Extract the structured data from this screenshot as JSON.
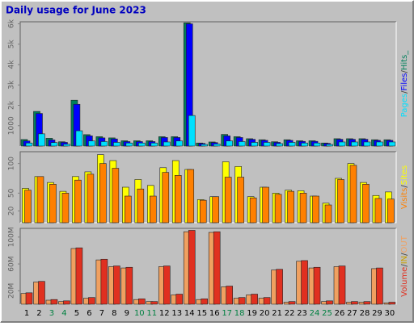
{
  "title": "Daily usage for June 2023",
  "legend_separator": "/",
  "chart_data": [
    {
      "type": "bar",
      "ylim": [
        0,
        6100
      ],
      "yticks": [
        1000,
        {
          "value": 2000,
          "label": "2k"
        },
        {
          "value": 3000,
          "label": "3k"
        },
        {
          "value": 4000,
          "label": "4k"
        },
        {
          "value": 5000,
          "label": "5k"
        },
        {
          "value": 6000,
          "label": "6k"
        }
      ],
      "series": [
        {
          "name": "Hits_",
          "color": "#00805c",
          "values": [
            320,
            1700,
            380,
            210,
            2250,
            560,
            460,
            400,
            260,
            260,
            260,
            460,
            460,
            6050,
            150,
            200,
            570,
            460,
            360,
            310,
            210,
            310,
            260,
            260,
            150,
            360,
            360,
            360,
            310,
            310
          ]
        },
        {
          "name": "Files",
          "color": "#0000ff",
          "values": [
            250,
            1600,
            300,
            180,
            2050,
            500,
            400,
            350,
            220,
            220,
            220,
            420,
            420,
            6000,
            130,
            170,
            500,
            420,
            330,
            280,
            180,
            280,
            230,
            230,
            130,
            330,
            330,
            330,
            280,
            280
          ]
        },
        {
          "name": "Pages",
          "color": "#00e0ff",
          "values": [
            150,
            600,
            170,
            90,
            750,
            250,
            220,
            180,
            150,
            150,
            150,
            200,
            250,
            1500,
            80,
            100,
            250,
            220,
            180,
            180,
            120,
            180,
            150,
            150,
            80,
            200,
            200,
            200,
            200,
            200
          ]
        }
      ]
    },
    {
      "type": "bar",
      "ylim": [
        0,
        120
      ],
      "yticks": [
        20,
        50,
        100
      ],
      "series": [
        {
          "name": "Sites",
          "color": "#ffff00",
          "values": [
            58,
            78,
            68,
            53,
            78,
            86,
            115,
            105,
            60,
            73,
            63,
            93,
            105,
            90,
            39,
            44,
            103,
            95,
            44,
            60,
            50,
            55,
            54,
            45,
            33,
            75,
            100,
            68,
            46,
            52
          ]
        },
        {
          "name": "Visits",
          "color": "#ff8000",
          "values": [
            55,
            78,
            65,
            50,
            72,
            82,
            100,
            92,
            45,
            57,
            45,
            85,
            80,
            90,
            38,
            44,
            77,
            77,
            42,
            60,
            48,
            53,
            50,
            45,
            30,
            73,
            97,
            65,
            41,
            40
          ]
        }
      ]
    },
    {
      "type": "bar",
      "ylim": [
        0,
        113
      ],
      "yticks": [
        {
          "value": 20,
          "label": "20M"
        },
        {
          "value": 60,
          "label": "60M"
        },
        {
          "value": 100,
          "label": "100M"
        }
      ],
      "categories": [
        "1",
        "2",
        "3",
        "4",
        "5",
        "6",
        "7",
        "8",
        "9",
        "10",
        "11",
        "12",
        "13",
        "14",
        "15",
        "16",
        "17",
        "18",
        "19",
        "20",
        "21",
        "22",
        "23",
        "24",
        "25",
        "26",
        "27",
        "28",
        "29",
        "30"
      ],
      "category_colors": [
        "#000000",
        "#000000",
        "#008040",
        "#008040",
        "#000000",
        "#000000",
        "#000000",
        "#000000",
        "#000000",
        "#008040",
        "#008040",
        "#000000",
        "#000000",
        "#000000",
        "#000000",
        "#000000",
        "#008040",
        "#008040",
        "#000000",
        "#000000",
        "#000000",
        "#000000",
        "#000000",
        "#008040",
        "#008040",
        "#000000",
        "#000000",
        "#000000",
        "#000000",
        "#000000"
      ],
      "series": [
        {
          "name": "OUT",
          "color": "#f0a060",
          "values": [
            16,
            33,
            6,
            4,
            83,
            9,
            66,
            56,
            54,
            7,
            4,
            56,
            14,
            108,
            7,
            107,
            26,
            9,
            14,
            9,
            51,
            3,
            64,
            54,
            4,
            56,
            3,
            3,
            53,
            2
          ]
        },
        {
          "name": "IN",
          "color": "#c8a000",
          "values": [
            null,
            null,
            null,
            null,
            null,
            null,
            null,
            null,
            null,
            null,
            null,
            null,
            null,
            null,
            null,
            null,
            null,
            null,
            null,
            null,
            null,
            null,
            null,
            null,
            null,
            null,
            null,
            null,
            null,
            null
          ]
        },
        {
          "name": "Volume",
          "color": "#e03020",
          "values": [
            17,
            34,
            7,
            5,
            84,
            10,
            67,
            57,
            55,
            8,
            4,
            57,
            15,
            110,
            8,
            108,
            27,
            10,
            15,
            10,
            52,
            4,
            65,
            55,
            5,
            57,
            4,
            4,
            54,
            3
          ]
        }
      ]
    }
  ]
}
